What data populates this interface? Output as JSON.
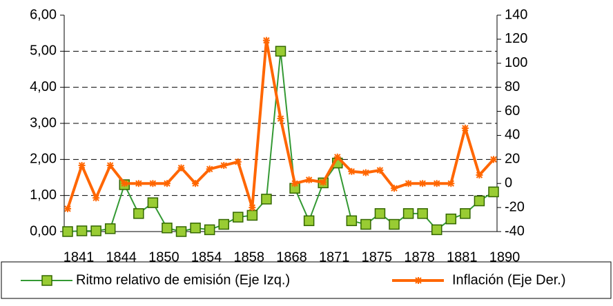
{
  "chart_data": {
    "type": "line",
    "categories": [
      "1841",
      null,
      null,
      "1844",
      null,
      null,
      "1850",
      null,
      null,
      "1854",
      null,
      null,
      "1858",
      null,
      null,
      "1868",
      null,
      null,
      "1871",
      null,
      null,
      "1875",
      null,
      null,
      "1878",
      null,
      null,
      "1881",
      null,
      null,
      "1890"
    ],
    "series": [
      {
        "name": "Ritmo relativo de emisión (Eje Izq.)",
        "color": "#339933",
        "marker_color": "#99cc33",
        "axis": "y",
        "values": [
          0.0,
          0.02,
          0.02,
          0.08,
          1.3,
          0.5,
          0.8,
          0.1,
          0.0,
          0.1,
          0.05,
          0.2,
          0.4,
          0.45,
          0.9,
          5.0,
          1.2,
          0.3,
          1.35,
          1.9,
          0.3,
          0.2,
          0.5,
          0.2,
          0.5,
          0.5,
          0.05,
          0.35,
          0.5,
          0.85,
          1.1
        ]
      },
      {
        "name": "Inflación (Eje Der.)",
        "color": "#ff6600",
        "axis": "y2",
        "values": [
          -21,
          15,
          -12,
          15,
          0,
          0,
          0,
          0,
          13,
          0,
          12,
          15,
          18,
          -20,
          119,
          54,
          0,
          3,
          1,
          22,
          10,
          9,
          11,
          -4,
          0,
          0,
          0,
          0,
          46,
          7,
          20
        ]
      }
    ],
    "ylim": [
      0,
      6
    ],
    "yticks": [
      {
        "value": 0,
        "label": "0,00"
      },
      {
        "value": 1,
        "label": "1,00"
      },
      {
        "value": 2,
        "label": "2,00"
      },
      {
        "value": 3,
        "label": "3,00"
      },
      {
        "value": 4,
        "label": "4,00"
      },
      {
        "value": 5,
        "label": "5,00"
      },
      {
        "value": 6,
        "label": "6,00"
      }
    ],
    "y2lim": [
      -40,
      140
    ],
    "y2ticks": [
      -40,
      -20,
      0,
      20,
      40,
      60,
      80,
      100,
      120,
      140
    ],
    "grid": true,
    "legend": "bottom"
  }
}
